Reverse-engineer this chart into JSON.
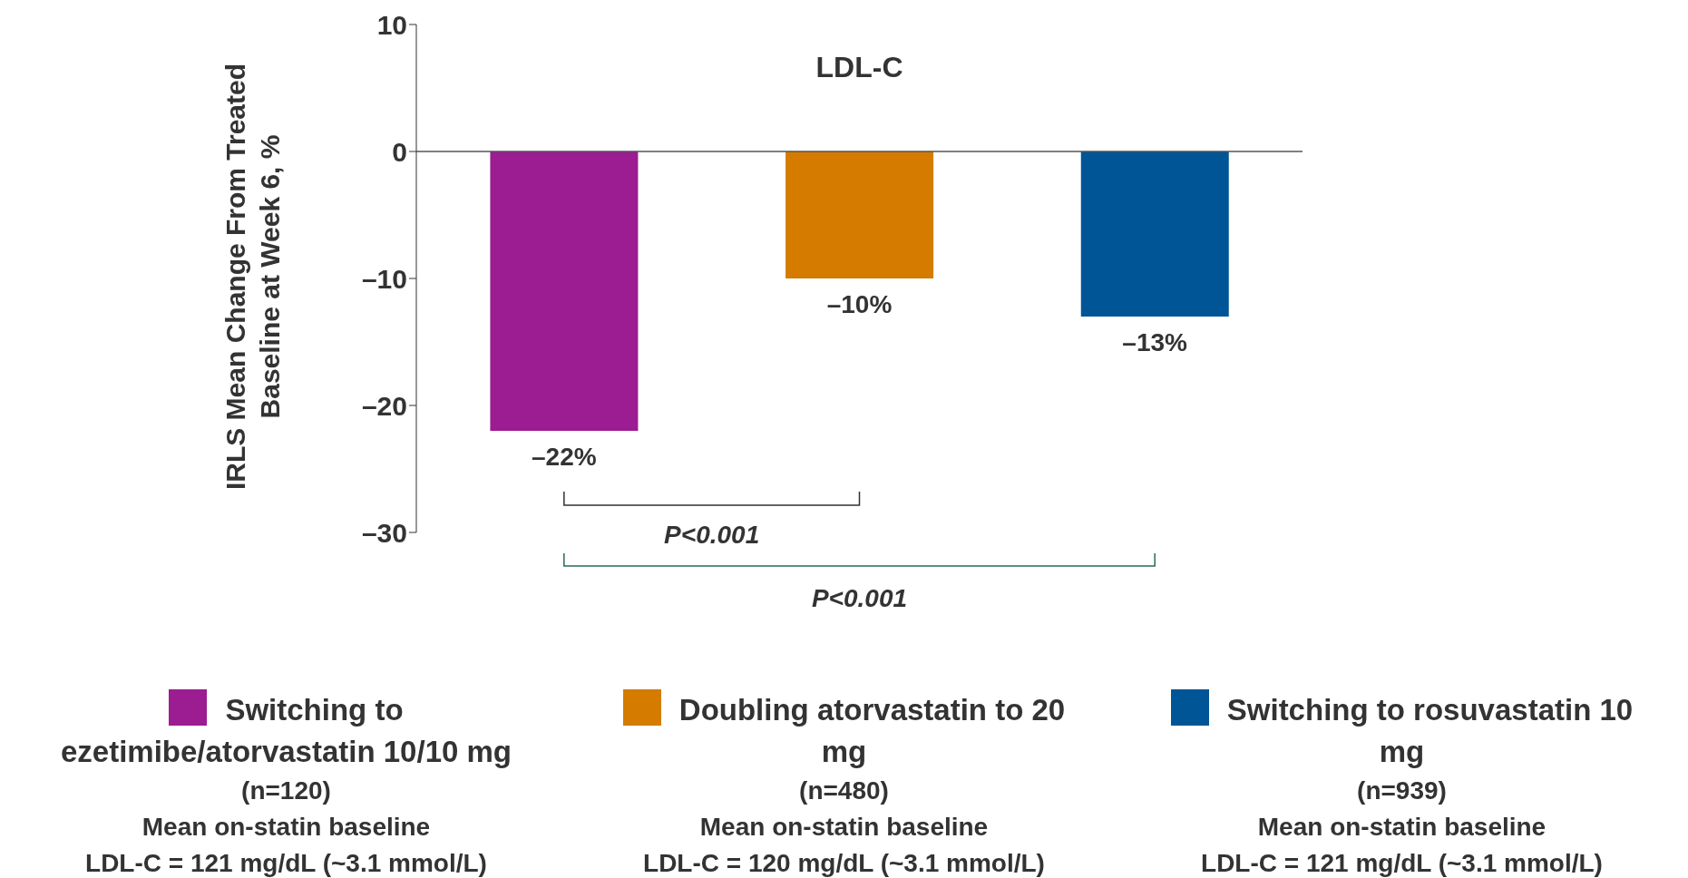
{
  "chart_data": {
    "type": "bar",
    "title": "LDL-C",
    "ylabel": "IRLS Mean Change From Treated Baseline at Week 6, %",
    "categories": [
      null,
      null,
      null
    ],
    "stacked": true,
    "series": [
      {
        "name": "Switching to ezetimibe/atorvastatin 10/10 mg",
        "color": "#9c1c91",
        "values": [
          -22,
          null,
          null
        ],
        "value_labels": [
          "–22%",
          null,
          null
        ]
      },
      {
        "name": "Doubling atorvastatin to 20 mg",
        "color": "#d47b00",
        "values": [
          null,
          -10,
          null
        ],
        "value_labels": [
          null,
          "–10%",
          null
        ]
      },
      {
        "name": "Switching to rosuvastatin 10 mg",
        "color": "#005596",
        "values": [
          null,
          null,
          -13
        ],
        "value_labels": [
          null,
          null,
          "–13%"
        ]
      }
    ],
    "ylim": [
      -30,
      10
    ],
    "yticks": [
      {
        "value": -30,
        "label": "–30"
      },
      {
        "value": -20,
        "label": "–20"
      },
      {
        "value": -10,
        "label": "–10"
      },
      0,
      10
    ],
    "legend": "bottom",
    "annotations": [
      "P<0.001",
      "P<0.001",
      "(n=120)\nMean on-statin baseline\nLDL-C = 121 mg/dL (~3.1 mmol/L)",
      "(n=480)\nMean on-statin baseline\nLDL-C = 120 mg/dL (~3.1 mmol/L)",
      "(n=939)\nMean on-statin baseline\nLDL-C = 121 mg/dL (~3.1 mmol/L)"
    ]
  }
}
